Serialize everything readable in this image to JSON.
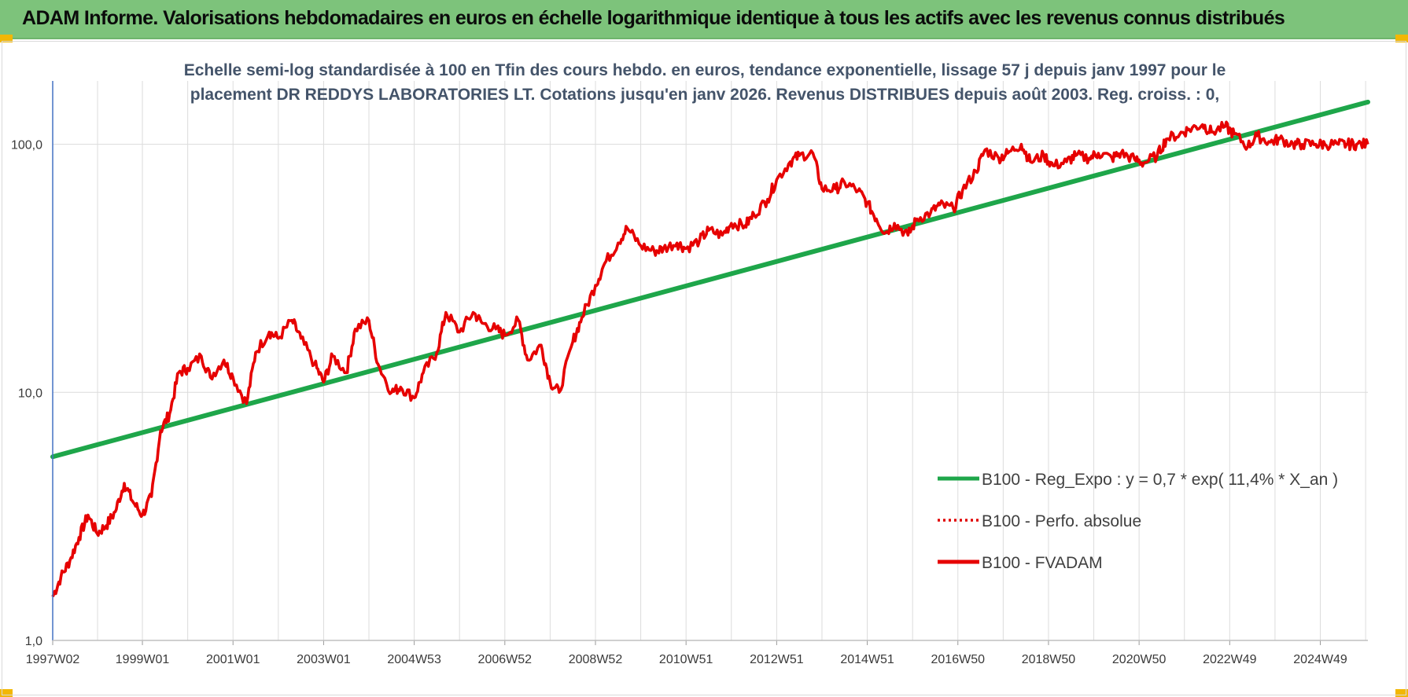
{
  "header": {
    "title": "ADAM Informe. Valorisations hebdomadaires en euros en échelle logarithmique identique à tous les actifs avec les revenus connus distribués"
  },
  "chart_data": {
    "type": "line",
    "subtitle": [
      "Echelle semi-log standardisée à 100 en Tfin des cours hebdo. en euros, tendance exponentielle, lissage 57 j depuis janv 1997 pour le",
      "placement DR REDDYS LABORATORIES  LT. Cotations jusqu'en janv 2026. Revenus DISTRIBUES depuis août 2003. Reg. croiss. : 0,"
    ],
    "y_scale": "log",
    "ylim": [
      1,
      180
    ],
    "xlim": [
      1997.02,
      2026.05
    ],
    "y_ticks": [
      {
        "value": 1,
        "label": "1,0"
      },
      {
        "value": 10,
        "label": "10,0"
      },
      {
        "value": 100,
        "label": "100,0"
      }
    ],
    "x_ticks": [
      {
        "value": 1997.02,
        "label": "1997W02"
      },
      {
        "value": 1999.0,
        "label": "1999W01"
      },
      {
        "value": 2001.0,
        "label": "2001W01"
      },
      {
        "value": 2003.0,
        "label": "2003W01"
      },
      {
        "value": 2005.0,
        "label": "2004W53"
      },
      {
        "value": 2007.0,
        "label": "2006W52"
      },
      {
        "value": 2009.0,
        "label": "2008W52"
      },
      {
        "value": 2011.0,
        "label": "2010W51"
      },
      {
        "value": 2013.0,
        "label": "2012W51"
      },
      {
        "value": 2015.0,
        "label": "2014W51"
      },
      {
        "value": 2017.0,
        "label": "2016W50"
      },
      {
        "value": 2019.0,
        "label": "2018W50"
      },
      {
        "value": 2021.0,
        "label": "2020W50"
      },
      {
        "value": 2023.0,
        "label": "2022W49"
      },
      {
        "value": 2025.0,
        "label": "2024W49"
      }
    ],
    "grid": "vertical-and-horizontal",
    "legend_position": "bottom-right",
    "series": [
      {
        "name": "B100 - Reg_Expo : y = 0,7 * exp( 11,4% *  X_an )",
        "color": "#1ea64a",
        "style": "solid",
        "x": [
          1997.02,
          2026.05
        ],
        "y": [
          5.5,
          148
        ]
      },
      {
        "name": "B100 - Perfo. absolue",
        "color": "#e00000",
        "style": "dotted",
        "x": [],
        "y": []
      },
      {
        "name": "B100 - FVADAM",
        "color": "#e60000",
        "style": "solid",
        "x": [
          1997.02,
          1997.2,
          1997.4,
          1997.6,
          1997.8,
          1998.0,
          1998.2,
          1998.4,
          1998.6,
          1998.8,
          1999.0,
          1999.2,
          1999.4,
          1999.6,
          1999.8,
          2000.0,
          2000.3,
          2000.5,
          2000.8,
          2001.0,
          2001.3,
          2001.5,
          2001.8,
          2002.0,
          2002.3,
          2002.5,
          2002.8,
          2003.0,
          2003.2,
          2003.5,
          2003.7,
          2004.0,
          2004.2,
          2004.5,
          2004.7,
          2005.0,
          2005.2,
          2005.5,
          2005.7,
          2006.0,
          2006.3,
          2006.5,
          2006.8,
          2007.0,
          2007.3,
          2007.5,
          2007.8,
          2008.0,
          2008.2,
          2008.5,
          2008.7,
          2009.0,
          2009.2,
          2009.5,
          2009.7,
          2010.0,
          2010.3,
          2010.5,
          2010.8,
          2011.0,
          2011.3,
          2011.5,
          2011.8,
          2012.0,
          2012.3,
          2012.5,
          2012.8,
          2013.0,
          2013.3,
          2013.5,
          2013.8,
          2014.0,
          2014.3,
          2014.5,
          2014.8,
          2015.0,
          2015.2,
          2015.4,
          2015.6,
          2015.9,
          2016.1,
          2016.4,
          2016.6,
          2016.9,
          2017.1,
          2017.4,
          2017.6,
          2017.9,
          2018.1,
          2018.4,
          2018.6,
          2018.9,
          2019.1,
          2019.4,
          2019.6,
          2019.9,
          2020.1,
          2020.4,
          2020.6,
          2020.9,
          2021.1,
          2021.4,
          2021.6,
          2021.9,
          2022.1,
          2022.4,
          2022.6,
          2022.9,
          2023.1,
          2023.4,
          2023.6,
          2023.9,
          2024.1,
          2024.4,
          2024.6,
          2024.9,
          2025.1,
          2025.4,
          2025.6,
          2025.8,
          2026.05
        ],
        "y": [
          1.5,
          1.8,
          2.1,
          2.6,
          3.2,
          2.7,
          2.9,
          3.3,
          4.3,
          3.6,
          3.2,
          3.8,
          7.0,
          8.2,
          12.0,
          12.5,
          14.0,
          11.5,
          13.5,
          11.5,
          9.0,
          14.5,
          17.5,
          16.5,
          19.5,
          16.5,
          13.0,
          11.0,
          14.0,
          12.0,
          18.0,
          19.5,
          13.0,
          10.0,
          10.5,
          9.5,
          12.0,
          14.5,
          21.0,
          17.5,
          21.0,
          19.0,
          18.0,
          17.0,
          19.5,
          13.5,
          15.5,
          11.0,
          10.0,
          16.0,
          20.0,
          27.0,
          33.0,
          40.0,
          46.0,
          39.0,
          37.0,
          38.0,
          40.0,
          38.0,
          41.0,
          45.0,
          43.0,
          48.0,
          47.0,
          52.0,
          60.0,
          72.0,
          85.0,
          90.0,
          92.0,
          66.0,
          66.0,
          70.0,
          65.0,
          58.0,
          50.0,
          44.0,
          48.0,
          43.0,
          50.0,
          53.0,
          57.0,
          55.0,
          65.0,
          78.0,
          95.0,
          88.0,
          92.0,
          100.0,
          85.0,
          90.0,
          82.0,
          85.0,
          90.0,
          88.0,
          92.0,
          88.0,
          92.0,
          87.0,
          84.0,
          90.0,
          105.0,
          110.0,
          115.0,
          120.0,
          112.0,
          118.0,
          110.0,
          98.0,
          108.0,
          102.0,
          105.0,
          100.0,
          100.0,
          100.0,
          100.0,
          100.0,
          100.0,
          100.0,
          100.0
        ],
        "note_points": []
      }
    ]
  }
}
